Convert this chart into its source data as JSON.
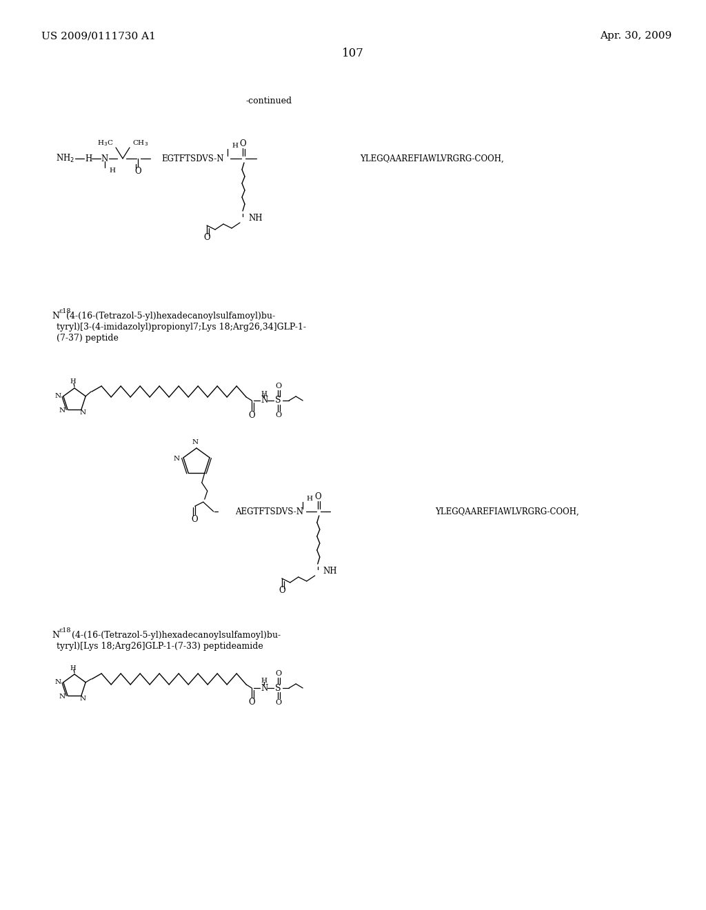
{
  "background_color": "#ffffff",
  "page_number": "107",
  "header_left": "US 2009/0111730 A1",
  "header_right": "Apr. 30, 2009",
  "continued_label": "-continued",
  "label1_line1": "N",
  "label1_sup": "ε18",
  "label1_rest1": "(4-(16-(Tetrazol-5-yl)hexadecanoylsulfamoyl)bu-",
  "label1_line2": "tyryl)[3-(4-imidazolyl)propionyl7;Lys 18;Arg26,34]GLP-1-",
  "label1_line3": "(7-37) peptide",
  "label2_line1": "N",
  "label2_sup": "ε18",
  "label2_rest1": "  (4-(16-(Tetrazol-5-yl)hexadecanoylsulfamoyl)bu-",
  "label2_line2": "tyryl)[Lys 18;Arg26]GLP-1-(7-33) peptideamide"
}
